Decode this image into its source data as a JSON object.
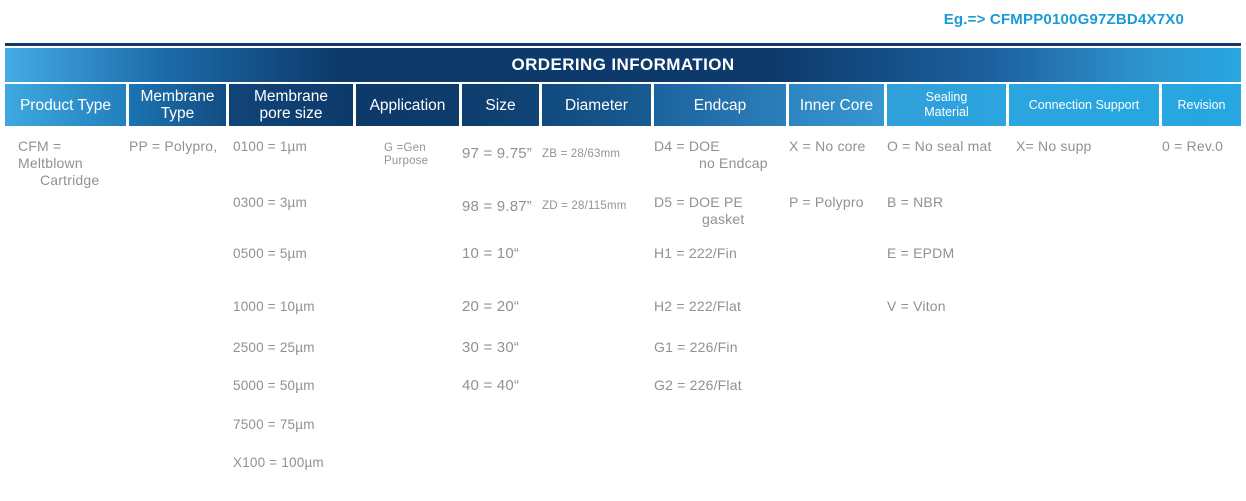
{
  "page": {
    "example_code": "Eg.=> CFMPP0100G97ZBD4X7X0",
    "accent_blue": "#1a9ad6",
    "header_dark_blue": "#0d3a6b",
    "header_light_blue": "#27a7e1",
    "body_text_color": "#8d9297"
  },
  "table": {
    "title": "ORDERING INFORMATION",
    "columns": [
      {
        "key": "product-type",
        "label": "Product Type",
        "items": [
          {
            "lines": [
              "CFM = Meltblown",
              "Cartridge"
            ],
            "indent": 22
          }
        ]
      },
      {
        "key": "membrane-type",
        "label": "Membrane\nType",
        "items": [
          {
            "lines": [
              "PP = Polypro,"
            ]
          }
        ]
      },
      {
        "key": "membrane-pore-size",
        "label": "Membrane\npore size",
        "items": [
          {
            "lines": [
              "0100 = 1µm"
            ]
          },
          {
            "lines": [
              "0300 = 3µm"
            ]
          },
          {
            "lines": [
              "0500 = 5µm"
            ]
          },
          {
            "lines": [
              "1000 = 10µm"
            ]
          },
          {
            "lines": [
              "2500 = 25µm"
            ]
          },
          {
            "lines": [
              "5000 = 50µm"
            ]
          },
          {
            "lines": [
              "7500 = 75µm"
            ]
          },
          {
            "lines": [
              "X100 = 100µm"
            ]
          }
        ]
      },
      {
        "key": "application",
        "label": "Application",
        "items": [
          {
            "lines": [
              "G =Gen",
              "Purpose"
            ],
            "small": true
          }
        ]
      },
      {
        "key": "size",
        "label": "Size",
        "items": [
          {
            "lines": [
              "97 = 9.75”"
            ]
          },
          {
            "lines": [
              "98 = 9.87”"
            ]
          },
          {
            "lines": [
              "10 = 10“"
            ]
          },
          {
            "lines": [
              "20 = 20“"
            ]
          },
          {
            "lines": [
              "30 = 30“"
            ]
          },
          {
            "lines": [
              "40 = 40“"
            ]
          }
        ]
      },
      {
        "key": "diameter",
        "label": "Diameter",
        "items": [
          {
            "lines": [
              "ZB = 28/63mm"
            ],
            "small": true
          },
          {
            "lines": [
              "ZD = 28/115mm"
            ],
            "small": true
          }
        ]
      },
      {
        "key": "endcap",
        "label": "Endcap",
        "items": [
          {
            "lines": [
              "D4 = DOE",
              "no Endcap"
            ],
            "indent": 45
          },
          {
            "lines": [
              "D5 = DOE PE",
              "gasket"
            ],
            "indent": 48
          },
          {
            "lines": [
              "H1 = 222/Fin"
            ]
          },
          {
            "lines": [
              "H2 = 222/Flat"
            ]
          },
          {
            "lines": [
              "G1 = 226/Fin"
            ]
          },
          {
            "lines": [
              "G2 = 226/Flat"
            ]
          }
        ]
      },
      {
        "key": "inner-core",
        "label": "Inner Core",
        "items": [
          {
            "lines": [
              "X = No core"
            ]
          },
          {
            "lines": [
              "P = Polypro"
            ]
          }
        ]
      },
      {
        "key": "sealing-material",
        "label": "Sealing\nMaterial",
        "items": [
          {
            "lines": [
              "O = No seal mat"
            ]
          },
          {
            "lines": [
              "B = NBR"
            ]
          },
          {
            "lines": [
              "E = EPDM"
            ]
          },
          {
            "lines": [
              "V = Viton"
            ]
          }
        ]
      },
      {
        "key": "connection-support",
        "label": "Connection Support",
        "items": [
          {
            "lines": [
              "X= No supp"
            ]
          }
        ]
      },
      {
        "key": "revision",
        "label": "Revision",
        "items": [
          {
            "lines": [
              "0 = Rev.0"
            ]
          }
        ]
      }
    ]
  }
}
